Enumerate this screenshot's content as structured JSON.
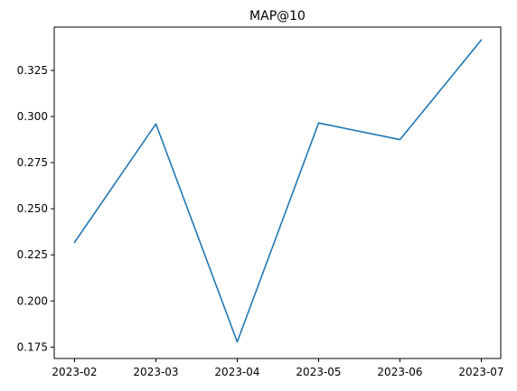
{
  "chart_data": {
    "type": "line",
    "title": "MAP@10",
    "xlabel": "",
    "ylabel": "",
    "x": [
      "2023-02",
      "2023-03",
      "2023-04",
      "2023-05",
      "2023-06",
      "2023-07"
    ],
    "series": [
      {
        "values": [
          0.2318,
          0.296,
          0.1778,
          0.2965,
          0.2875,
          0.3415
        ]
      }
    ],
    "xlim": [
      "2023-02",
      "2023-07"
    ],
    "ylim": [
      0.1688,
      0.3485
    ],
    "yticks": [
      0.175,
      0.2,
      0.225,
      0.25,
      0.275,
      0.3,
      0.325
    ],
    "ytick_labels": [
      "0.175",
      "0.200",
      "0.225",
      "0.250",
      "0.275",
      "0.300",
      "0.325"
    ],
    "grid": false,
    "line_color": "#1f77b4"
  }
}
